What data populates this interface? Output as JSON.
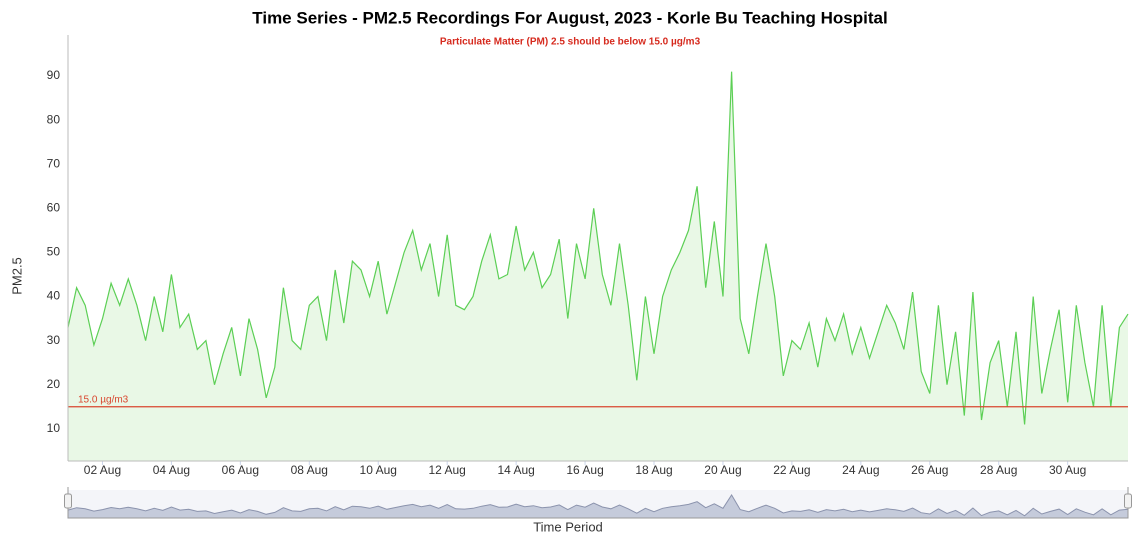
{
  "chart_data": {
    "type": "area",
    "title": "Time Series - PM2.5 Recordings For August, 2023 - Korle Bu Teaching Hospital",
    "subtitle": "Particulate Matter (PM) 2.5 should be below 15.0 µg/m3",
    "subtitle_color": "#d62a1e",
    "y_label": "PM2.5",
    "x_label": "Time Period",
    "zoom_input": "30",
    "color": "#5ccf55",
    "fill_color": "#e9f8e6",
    "grid": false,
    "xlim": [
      1,
      31.75
    ],
    "ylim": [
      2.7,
      99.3
    ],
    "yticks": [
      10,
      20,
      30,
      40,
      50,
      60,
      70,
      80,
      90
    ],
    "xticks": [
      {
        "value": 2,
        "label": "02 Aug"
      },
      {
        "value": 4,
        "label": "04 Aug"
      },
      {
        "value": 6,
        "label": "06 Aug"
      },
      {
        "value": 8,
        "label": "08 Aug"
      },
      {
        "value": 10,
        "label": "10 Aug"
      },
      {
        "value": 12,
        "label": "12 Aug"
      },
      {
        "value": 14,
        "label": "14 Aug"
      },
      {
        "value": 16,
        "label": "16 Aug"
      },
      {
        "value": 18,
        "label": "18 Aug"
      },
      {
        "value": 20,
        "label": "20 Aug"
      },
      {
        "value": 22,
        "label": "22 Aug"
      },
      {
        "value": 24,
        "label": "24 Aug"
      },
      {
        "value": 26,
        "label": "26 Aug"
      },
      {
        "value": 28,
        "label": "28 Aug"
      },
      {
        "value": 30,
        "label": "30 Aug"
      }
    ],
    "plot_lines": [
      {
        "value": 15,
        "label": "15.0 µg/m3",
        "color": "#d9472f"
      }
    ],
    "x": [
      1,
      1.25,
      1.5,
      1.75,
      2,
      2.25,
      2.5,
      2.75,
      3,
      3.25,
      3.5,
      3.75,
      4,
      4.25,
      4.5,
      4.75,
      5,
      5.25,
      5.5,
      5.75,
      6,
      6.25,
      6.5,
      6.75,
      7,
      7.25,
      7.5,
      7.75,
      8,
      8.25,
      8.5,
      8.75,
      9,
      9.25,
      9.5,
      9.75,
      10,
      10.25,
      10.5,
      10.75,
      11,
      11.25,
      11.5,
      11.75,
      12,
      12.25,
      12.5,
      12.75,
      13,
      13.25,
      13.5,
      13.75,
      14,
      14.25,
      14.5,
      14.75,
      15,
      15.25,
      15.5,
      15.75,
      16,
      16.25,
      16.5,
      16.75,
      17,
      17.25,
      17.5,
      17.75,
      18,
      18.25,
      18.5,
      18.75,
      19,
      19.25,
      19.5,
      19.75,
      20,
      20.25,
      20.5,
      20.75,
      21,
      21.25,
      21.5,
      21.75,
      22,
      22.25,
      22.5,
      22.75,
      23,
      23.25,
      23.5,
      23.75,
      24,
      24.25,
      24.5,
      24.75,
      25,
      25.25,
      25.5,
      25.75,
      26,
      26.25,
      26.5,
      26.75,
      27,
      27.25,
      27.5,
      27.75,
      28,
      28.25,
      28.5,
      28.75,
      29,
      29.25,
      29.5,
      29.75,
      30,
      30.25,
      30.5,
      30.75,
      31,
      31.25,
      31.5,
      31.75
    ],
    "values": [
      33,
      42,
      38,
      29,
      35,
      43,
      38,
      44,
      38,
      30,
      40,
      32,
      45,
      33,
      36,
      28,
      30,
      20,
      27,
      33,
      22,
      35,
      28,
      17,
      24,
      42,
      30,
      28,
      38,
      40,
      30,
      46,
      34,
      48,
      46,
      40,
      48,
      36,
      43,
      50,
      55,
      46,
      52,
      40,
      54,
      38,
      37,
      40,
      48,
      54,
      44,
      45,
      56,
      46,
      50,
      42,
      45,
      53,
      35,
      52,
      44,
      60,
      45,
      38,
      52,
      38,
      21,
      40,
      27,
      40,
      46,
      50,
      55,
      65,
      42,
      57,
      40,
      91,
      35,
      27,
      40,
      52,
      40,
      22,
      30,
      28,
      34,
      24,
      35,
      30,
      36,
      27,
      33,
      26,
      32,
      38,
      34,
      28,
      41,
      23,
      18,
      38,
      20,
      32,
      13,
      41,
      12,
      25,
      30,
      15,
      32,
      11,
      40,
      18,
      28,
      37,
      16,
      38,
      25,
      15,
      38,
      15,
      33,
      36
    ]
  }
}
